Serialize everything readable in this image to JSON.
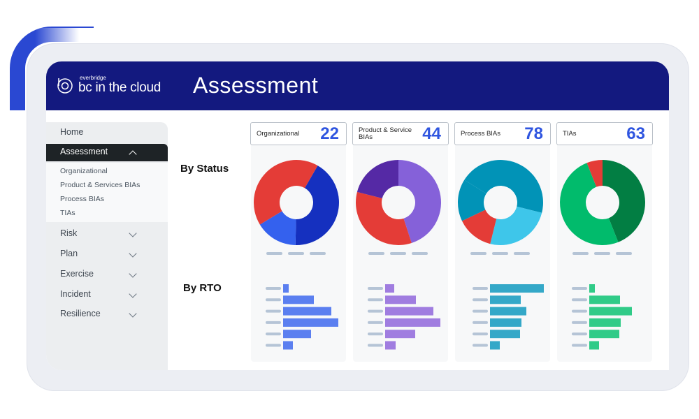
{
  "header": {
    "brand_small": "everbridge",
    "brand": "bc in the cloud",
    "title": "Assessment"
  },
  "sidebar": {
    "home": "Home",
    "active": "Assessment",
    "sub": [
      "Organizational",
      "Product & Services BIAs",
      "Process BIAs",
      "TIAs"
    ],
    "items": [
      "Risk",
      "Plan",
      "Exercise",
      "Incident",
      "Resilience"
    ]
  },
  "sections": {
    "status": "By Status",
    "rto": "By RTO"
  },
  "colors": {
    "header": "#13197f",
    "accent": "#2f55e0"
  },
  "chart_data": [
    {
      "type": "pie",
      "label": "Organizational",
      "count": "22",
      "slices": [
        {
          "value": 42,
          "color": "#1530bf"
        },
        {
          "value": 16,
          "color": "#3461ee"
        },
        {
          "value": 42,
          "color": "#e43c37"
        }
      ],
      "rto": {
        "values": [
          8,
          44,
          69,
          79,
          40,
          14
        ],
        "color": "#5b7ff0"
      }
    },
    {
      "type": "pie",
      "label": "Product & Service BIAs",
      "count": "44",
      "slices": [
        {
          "value": 45,
          "color": "#8561d9"
        },
        {
          "value": 34,
          "color": "#e43c37"
        },
        {
          "value": 21,
          "color": "#5529a5"
        }
      ],
      "rto": {
        "values": [
          13,
          44,
          69,
          79,
          43,
          15
        ],
        "color": "#a07de0"
      }
    },
    {
      "type": "pie",
      "label": "Process BIAs",
      "count": "78",
      "slices": [
        {
          "value": 45,
          "color": "#0193b7"
        },
        {
          "value": 25,
          "color": "#3ec6ea"
        },
        {
          "value": 14,
          "color": "#e43c37"
        },
        {
          "value": 16,
          "color": "#0193b7"
        }
      ],
      "rto": {
        "values": [
          77,
          44,
          52,
          45,
          43,
          14
        ],
        "color": "#34a8c8"
      }
    },
    {
      "type": "pie",
      "label": "TIAs",
      "count": "63",
      "slices": [
        {
          "value": 44,
          "color": "#027e43"
        },
        {
          "value": 50,
          "color": "#01bb6c"
        },
        {
          "value": 6,
          "color": "#e43c37"
        }
      ],
      "rto": {
        "values": [
          8,
          44,
          61,
          45,
          43,
          14
        ],
        "color": "#30cb88"
      }
    }
  ]
}
